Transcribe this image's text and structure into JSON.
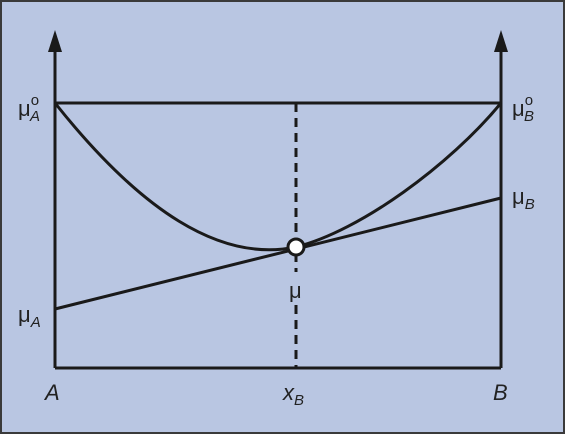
{
  "labels": [
    {
      "text": "μ",
      "sup": "o",
      "sub": "A"
    },
    {
      "text": "μ",
      "sup": "o",
      "sub": "B"
    },
    {
      "text": "μ",
      "sub": "B"
    },
    {
      "text": "μ",
      "sub": "A"
    },
    {
      "text": "μ"
    },
    {
      "text": "A"
    },
    {
      "text": "x",
      "sub": "B"
    },
    {
      "text": "B"
    }
  ]
}
